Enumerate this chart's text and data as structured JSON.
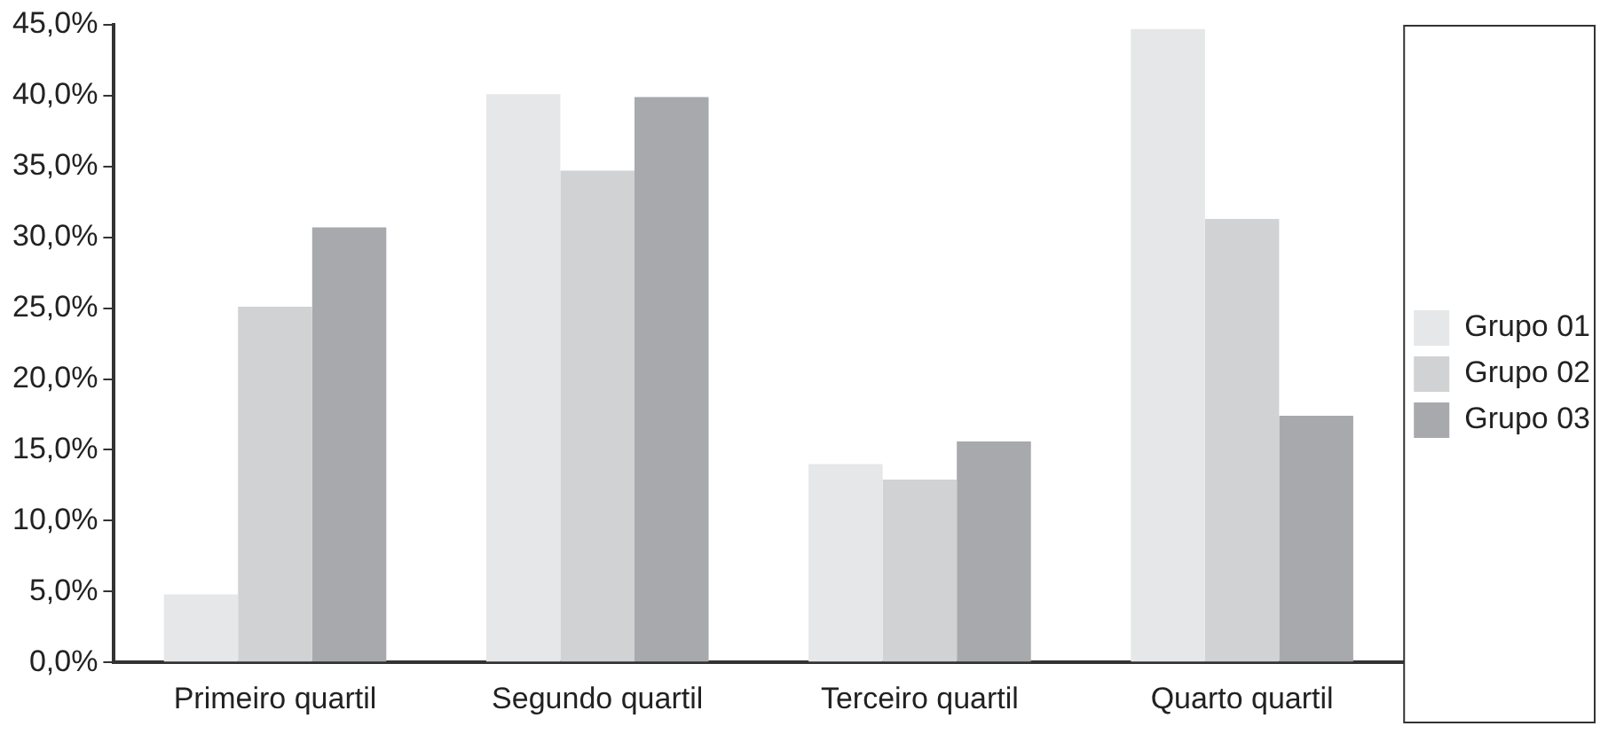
{
  "chart_data": {
    "type": "bar",
    "categories": [
      "Primeiro quartil",
      "Segundo quartil",
      "Terceiro quartil",
      "Quarto quartil"
    ],
    "series": [
      {
        "name": "Grupo 01",
        "color": "#e6e7e8",
        "values": [
          4.8,
          40.1,
          14.0,
          44.7
        ]
      },
      {
        "name": "Grupo 02",
        "color": "#d1d2d4",
        "values": [
          25.1,
          34.7,
          12.9,
          31.3
        ]
      },
      {
        "name": "Grupo 03",
        "color": "#a7a9ac",
        "values": [
          30.7,
          39.9,
          15.6,
          17.4
        ]
      }
    ],
    "ylim": [
      0,
      45
    ],
    "yticks": [
      {
        "value": 0,
        "label": "0,0%"
      },
      {
        "value": 5,
        "label": "5,0%"
      },
      {
        "value": 10,
        "label": "10,0%"
      },
      {
        "value": 15,
        "label": "15,0%"
      },
      {
        "value": 20,
        "label": "20,0%"
      },
      {
        "value": 25,
        "label": "25,0%"
      },
      {
        "value": 30,
        "label": "30,0%"
      },
      {
        "value": 35,
        "label": "35,0%"
      },
      {
        "value": 40,
        "label": "40,0%"
      },
      {
        "value": 45,
        "label": "45,0%"
      }
    ],
    "grid": false,
    "legend": "right"
  }
}
